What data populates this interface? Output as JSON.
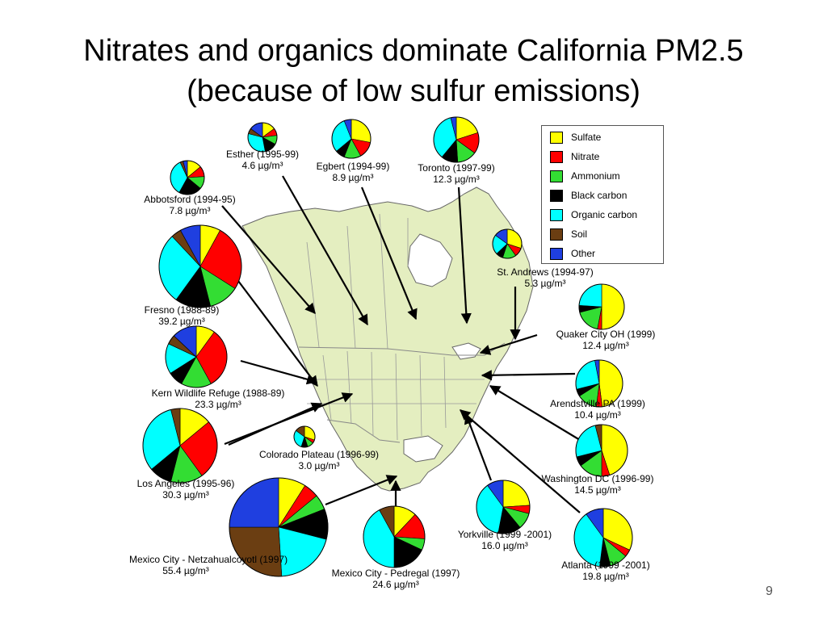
{
  "slide": {
    "title_line1": "Nitrates and organics dominate California PM2.5",
    "title_line2": "(because of low sulfur emissions)",
    "page_number": "9"
  },
  "chart_data": {
    "type": "pie",
    "components": [
      {
        "name": "Sulfate",
        "color": "#ffff00"
      },
      {
        "name": "Nitrate",
        "color": "#ff0000"
      },
      {
        "name": "Ammonium",
        "color": "#33dd33"
      },
      {
        "name": "Black carbon",
        "color": "#000000"
      },
      {
        "name": "Organic carbon",
        "color": "#00ffff"
      },
      {
        "name": "Soil",
        "color": "#6b3e12"
      },
      {
        "name": "Other",
        "color": "#1f3fe0"
      }
    ],
    "legend_position": "top-right",
    "sites": [
      {
        "name": "Esther (1995-99)",
        "concentration": "4.6",
        "unit": "µg/m³",
        "fractions": [
          15,
          8,
          10,
          14,
          32,
          6,
          15
        ]
      },
      {
        "name": "Egbert (1994-99)",
        "concentration": "8.9",
        "unit": "µg/m³",
        "fractions": [
          28,
          14,
          14,
          8,
          30,
          0,
          6
        ]
      },
      {
        "name": "Toronto (1997-99)",
        "concentration": "12.3",
        "unit": "µg/m³",
        "fractions": [
          20,
          15,
          14,
          12,
          35,
          0,
          4
        ]
      },
      {
        "name": "Abbotsford (1994-95)",
        "concentration": "7.8",
        "unit": "µg/m³",
        "fractions": [
          14,
          10,
          12,
          22,
          35,
          3,
          4
        ]
      },
      {
        "name": "St. Andrews (1994-97)",
        "concentration": "5.3",
        "unit": "µg/m³",
        "fractions": [
          30,
          10,
          15,
          8,
          22,
          0,
          15
        ]
      },
      {
        "name": "Fresno (1988-89)",
        "concentration": "39.2",
        "unit": "µg/m³",
        "fractions": [
          8,
          26,
          12,
          14,
          28,
          4,
          8
        ]
      },
      {
        "name": "Quaker City OH (1999)",
        "concentration": "12.4",
        "unit": "µg/m³",
        "fractions": [
          50,
          3,
          18,
          5,
          24,
          0,
          0
        ]
      },
      {
        "name": "Kern Wildlife Refuge (1988-89)",
        "concentration": "23.3",
        "unit": "µg/m³",
        "fractions": [
          10,
          32,
          16,
          8,
          16,
          5,
          13
        ]
      },
      {
        "name": "Arendstville PA (1999)",
        "concentration": "10.4",
        "unit": "µg/m³",
        "fractions": [
          48,
          4,
          14,
          5,
          26,
          0,
          3
        ]
      },
      {
        "name": "Colorado Plateau (1996-99)",
        "concentration": "3.0",
        "unit": "µg/m³",
        "fractions": [
          30,
          5,
          10,
          10,
          30,
          15,
          0
        ]
      },
      {
        "name": "Los Angeles (1995-96)",
        "concentration": "30.3",
        "unit": "µg/m³",
        "fractions": [
          14,
          26,
          14,
          10,
          32,
          4,
          0
        ]
      },
      {
        "name": "Washington DC (1996-99)",
        "concentration": "14.5",
        "unit": "µg/m³",
        "fractions": [
          45,
          5,
          15,
          6,
          25,
          4,
          0
        ]
      },
      {
        "name": "Mexico City - Netzahualcoyotl (1997)",
        "concentration": "55.4",
        "unit": "µg/m³",
        "fractions": [
          9,
          5,
          5,
          10,
          20,
          26,
          25
        ]
      },
      {
        "name": "Mexico City - Pedregal (1997)",
        "concentration": "24.6",
        "unit": "µg/m³",
        "fractions": [
          12,
          14,
          6,
          18,
          42,
          8,
          0
        ]
      },
      {
        "name": "Yorkville (1999 -2001)",
        "concentration": "16.0",
        "unit": "µg/m³",
        "fractions": [
          24,
          5,
          10,
          14,
          37,
          0,
          10
        ]
      },
      {
        "name": "Atlanta (1999 -2001)",
        "concentration": "19.8",
        "unit": "µg/m³",
        "fractions": [
          32,
          4,
          10,
          6,
          38,
          0,
          10
        ]
      }
    ]
  }
}
